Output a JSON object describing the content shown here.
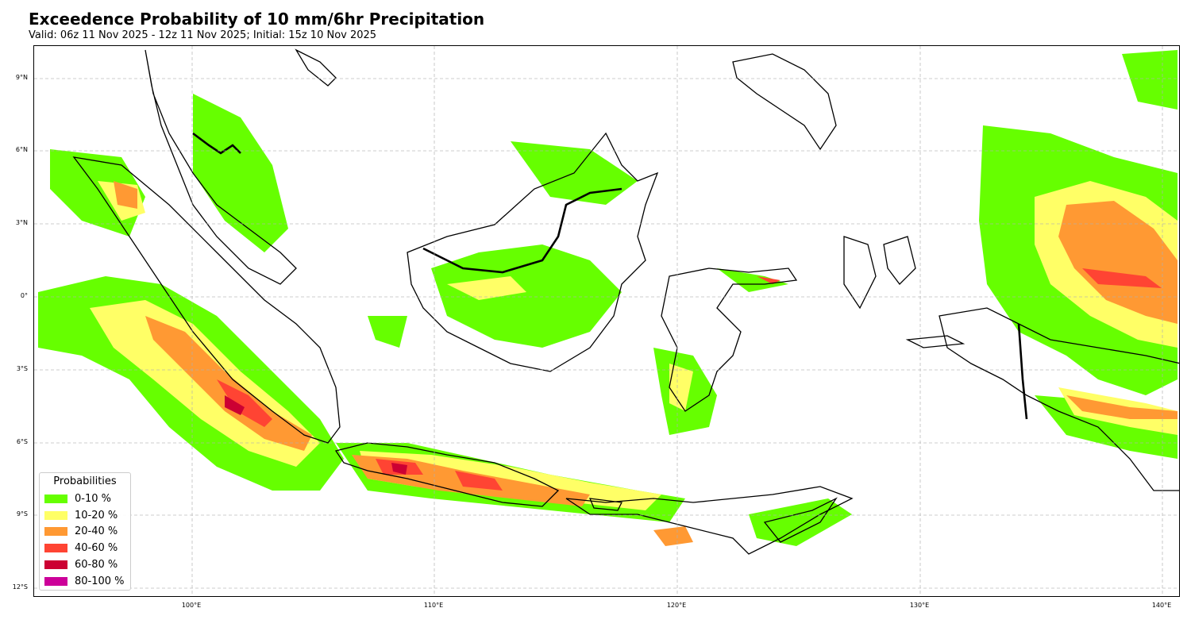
{
  "title": "Exceedence Probability of 10 mm/6hr Precipitation",
  "subtitle": "Valid: 06z 11 Nov 2025 - 12z 11 Nov 2025; Initial: 15z 10 Nov 2025",
  "map": {
    "region": "Indonesia / Maritime Continent",
    "extent": {
      "lon_min": 93.5,
      "lon_max": 140.8,
      "lat_min": -12.3,
      "lat_max": 10.4
    },
    "gridlines": true,
    "lat_labels": [
      "9°N",
      "6°N",
      "3°N",
      "0°",
      "3°S",
      "6°S",
      "9°S",
      "12°S"
    ],
    "lon_labels": [
      "100°E",
      "110°E",
      "120°E",
      "130°E",
      "140°E"
    ]
  },
  "legend": {
    "title": "Probabilities",
    "placement": "bottom-left",
    "items": [
      {
        "label": "0-10 %",
        "color": "#66ff00"
      },
      {
        "label": "10-20 %",
        "color": "#ffff66"
      },
      {
        "label": "20-40 %",
        "color": "#ff9933"
      },
      {
        "label": "40-60 %",
        "color": "#ff4433"
      },
      {
        "label": "60-80 %",
        "color": "#cc0033"
      },
      {
        "label": "80-100 %",
        "color": "#cc0099"
      }
    ]
  }
}
